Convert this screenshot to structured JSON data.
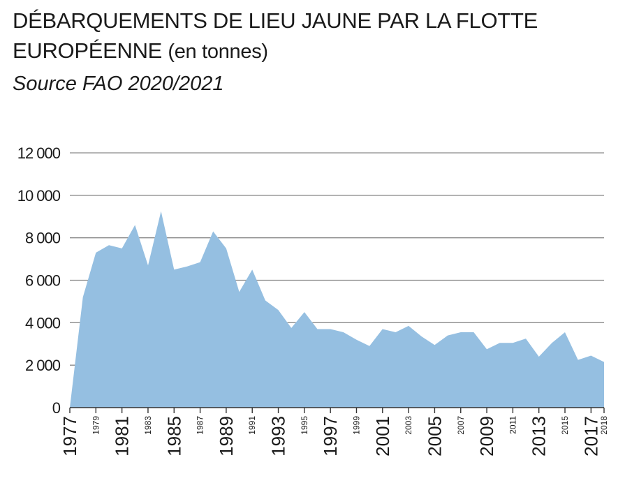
{
  "header": {
    "title": "DÉBARQUEMENTS DE LIEU JAUNE PAR LA FLOTTE EUROPÉENNE",
    "unit": "(en tonnes)",
    "source": "Source FAO 2020/2021"
  },
  "colors": {
    "area": "#95bfe1",
    "grid": "#8a8a8a",
    "axis": "#333333",
    "text": "#1a1a1a"
  },
  "chart_data": {
    "type": "area",
    "title": "DÉBARQUEMENTS DE LIEU JAUNE PAR LA FLOTTE EUROPÉENNE (en tonnes)",
    "subtitle": "Source FAO 2020/2021",
    "xlabel": "",
    "ylabel": "",
    "ylim": [
      0,
      12000
    ],
    "xlim": [
      1977,
      2018
    ],
    "grid": true,
    "legend": "none",
    "y_ticks": [
      "0",
      "2 000",
      "4 000",
      "6 000",
      "8 000",
      "10 000",
      "12 000"
    ],
    "y_tick_values": [
      0,
      2000,
      4000,
      6000,
      8000,
      10000,
      12000
    ],
    "x_ticks_large": [
      "1977",
      "1981",
      "1985",
      "1989",
      "1993",
      "1997",
      "2001",
      "2005",
      "2009",
      "2013",
      "2017"
    ],
    "x_ticks_small": [
      "1979",
      "1983",
      "1987",
      "1991",
      "1995",
      "1999",
      "2003",
      "2007",
      "2011",
      "2015",
      "2018"
    ],
    "x": [
      1977,
      1978,
      1979,
      1980,
      1981,
      1982,
      1983,
      1984,
      1985,
      1986,
      1987,
      1988,
      1989,
      1990,
      1991,
      1992,
      1993,
      1994,
      1995,
      1996,
      1997,
      1998,
      1999,
      2000,
      2001,
      2002,
      2003,
      2004,
      2005,
      2006,
      2007,
      2008,
      2009,
      2010,
      2011,
      2012,
      2013,
      2014,
      2015,
      2016,
      2017,
      2018
    ],
    "series": [
      {
        "values": [
          0,
          5200,
          7300,
          7650,
          7500,
          8600,
          6700,
          9250,
          6500,
          6650,
          6850,
          8300,
          7500,
          5450,
          6500,
          5050,
          4600,
          3750,
          4500,
          3700,
          3700,
          3550,
          3200,
          2900,
          3700,
          3550,
          3850,
          3350,
          2950,
          3400,
          3550,
          3550,
          2750,
          3050,
          3050,
          3250,
          2400,
          3050,
          3550,
          2250,
          2450,
          2150
        ]
      }
    ]
  }
}
